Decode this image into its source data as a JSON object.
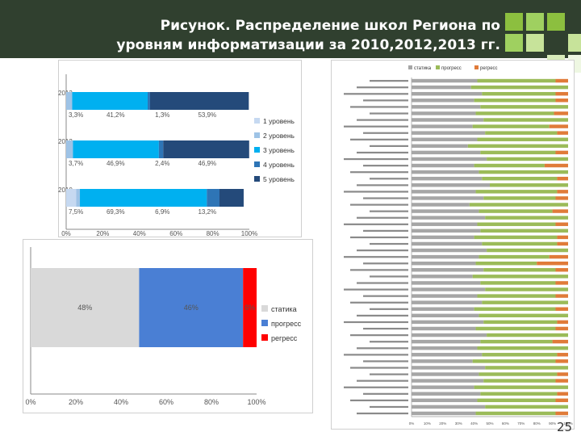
{
  "title_line1": "Рисунок. Распределение школ Региона по",
  "title_line2": "уровням информатизации за 2010,2012,2013 гг.",
  "page_number": "25",
  "colors": {
    "header_bg": "#30402f",
    "accent_green": "#8cbf3f",
    "level1": "#c6d9f1",
    "level2": "#9ec3e6",
    "level3": "#00b0f0",
    "level4": "#2e75b6",
    "level5": "#244a7a",
    "statika": "#d9d9d9",
    "progress_blue": "#4a7fd4",
    "regress_red": "#ff0000",
    "progress_green": "#9bbb59",
    "regress_orange": "#e07b39",
    "statika_grey": "#a6a6a6"
  },
  "chart_data": [
    {
      "type": "bar",
      "orientation": "horizontal",
      "stacked": true,
      "percent": true,
      "categories": [
        "2013",
        "2012",
        "2010"
      ],
      "series": [
        {
          "name": "1 уровень",
          "values": [
            0,
            0,
            5.5
          ]
        },
        {
          "name": "2 уровень",
          "values": [
            3.3,
            3.7,
            2.0
          ]
        },
        {
          "name": "3 уровень",
          "values": [
            41.2,
            46.9,
            69.3
          ]
        },
        {
          "name": "4 уровень",
          "values": [
            1.3,
            2.4,
            6.9
          ]
        },
        {
          "name": "5 уровень",
          "values": [
            53.9,
            46.9,
            13.2
          ]
        }
      ],
      "data_labels": [
        [
          "3,3%",
          "41,2%",
          "1,3%",
          "53,9%"
        ],
        [
          "3,7%",
          "46,9%",
          "2,4%",
          "46,9%"
        ],
        [
          "7,5%",
          "69,3%",
          "6,9%",
          "13,2%"
        ]
      ],
      "x_ticks": [
        "0%",
        "20%",
        "40%",
        "60%",
        "80%",
        "100%"
      ],
      "xlim": [
        0,
        100
      ],
      "legend_position": "right"
    },
    {
      "type": "bar",
      "orientation": "horizontal",
      "stacked": true,
      "percent": true,
      "categories": [
        ""
      ],
      "series": [
        {
          "name": "статика",
          "values": [
            48
          ]
        },
        {
          "name": "прогресс",
          "values": [
            46
          ]
        },
        {
          "name": "регресс",
          "values": [
            6
          ]
        }
      ],
      "data_labels": [
        "48%",
        "46%",
        "6%"
      ],
      "x_ticks": [
        "0%",
        "20%",
        "40%",
        "60%",
        "80%",
        "100%"
      ],
      "xlim": [
        0,
        100
      ],
      "legend_position": "right"
    },
    {
      "type": "bar",
      "orientation": "horizontal",
      "stacked": true,
      "percent": true,
      "legend": [
        "статика",
        "прогресс",
        "регресс"
      ],
      "x_ticks": [
        "0%",
        "10%",
        "20%",
        "30%",
        "40%",
        "50%",
        "60%",
        "70%",
        "80%",
        "90%",
        "100%"
      ],
      "xlim": [
        0,
        100
      ],
      "legend_position": "top",
      "row_count": 52,
      "rows": [
        {
          "s": 42,
          "p": 50,
          "r": 8
        },
        {
          "s": 38,
          "p": 62,
          "r": 0
        },
        {
          "s": 45,
          "p": 47,
          "r": 8
        },
        {
          "s": 40,
          "p": 52,
          "r": 8
        },
        {
          "s": 44,
          "p": 56,
          "r": 0
        },
        {
          "s": 41,
          "p": 50,
          "r": 9
        },
        {
          "s": 46,
          "p": 54,
          "r": 0
        },
        {
          "s": 39,
          "p": 49,
          "r": 12
        },
        {
          "s": 47,
          "p": 46,
          "r": 7
        },
        {
          "s": 42,
          "p": 58,
          "r": 0
        },
        {
          "s": 36,
          "p": 64,
          "r": 0
        },
        {
          "s": 44,
          "p": 48,
          "r": 8
        },
        {
          "s": 48,
          "p": 52,
          "r": 0
        },
        {
          "s": 40,
          "p": 45,
          "r": 15
        },
        {
          "s": 43,
          "p": 57,
          "r": 0
        },
        {
          "s": 45,
          "p": 48,
          "r": 7
        },
        {
          "s": 50,
          "p": 50,
          "r": 0
        },
        {
          "s": 41,
          "p": 52,
          "r": 7
        },
        {
          "s": 46,
          "p": 46,
          "r": 8
        },
        {
          "s": 37,
          "p": 63,
          "r": 0
        },
        {
          "s": 43,
          "p": 47,
          "r": 10
        },
        {
          "s": 47,
          "p": 53,
          "r": 0
        },
        {
          "s": 42,
          "p": 50,
          "r": 8
        },
        {
          "s": 44,
          "p": 56,
          "r": 0
        },
        {
          "s": 40,
          "p": 53,
          "r": 7
        },
        {
          "s": 45,
          "p": 48,
          "r": 7
        },
        {
          "s": 48,
          "p": 52,
          "r": 0
        },
        {
          "s": 43,
          "p": 45,
          "r": 12
        },
        {
          "s": 41,
          "p": 39,
          "r": 20
        },
        {
          "s": 46,
          "p": 46,
          "r": 8
        },
        {
          "s": 39,
          "p": 61,
          "r": 0
        },
        {
          "s": 44,
          "p": 48,
          "r": 8
        },
        {
          "s": 47,
          "p": 53,
          "r": 0
        },
        {
          "s": 42,
          "p": 50,
          "r": 8
        },
        {
          "s": 45,
          "p": 55,
          "r": 0
        },
        {
          "s": 40,
          "p": 52,
          "r": 8
        },
        {
          "s": 43,
          "p": 57,
          "r": 0
        },
        {
          "s": 46,
          "p": 47,
          "r": 7
        },
        {
          "s": 41,
          "p": 51,
          "r": 8
        },
        {
          "s": 48,
          "p": 52,
          "r": 0
        },
        {
          "s": 44,
          "p": 46,
          "r": 10
        },
        {
          "s": 42,
          "p": 58,
          "r": 0
        },
        {
          "s": 45,
          "p": 48,
          "r": 7
        },
        {
          "s": 39,
          "p": 53,
          "r": 8
        },
        {
          "s": 47,
          "p": 53,
          "r": 0
        },
        {
          "s": 43,
          "p": 50,
          "r": 7
        },
        {
          "s": 46,
          "p": 46,
          "r": 8
        },
        {
          "s": 40,
          "p": 60,
          "r": 0
        },
        {
          "s": 44,
          "p": 49,
          "r": 7
        },
        {
          "s": 42,
          "p": 50,
          "r": 8
        },
        {
          "s": 47,
          "p": 53,
          "r": 0
        },
        {
          "s": 41,
          "p": 51,
          "r": 8
        }
      ]
    }
  ]
}
